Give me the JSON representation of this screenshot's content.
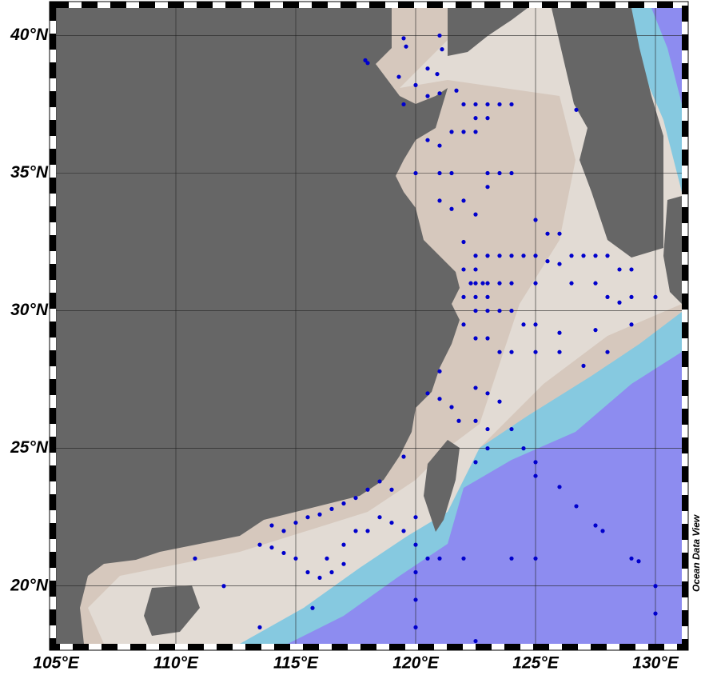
{
  "chart_data": {
    "type": "scatter",
    "annotation": "Ocean Data View",
    "color": "#0000cc",
    "grid": true,
    "xlim": [
      105,
      131.1
    ],
    "ylim": [
      17.9,
      41
    ],
    "xticks": [
      {
        "value": 105,
        "label": "105°E"
      },
      {
        "value": 110,
        "label": "110°E"
      },
      {
        "value": 115,
        "label": "115°E"
      },
      {
        "value": 120,
        "label": "120°E"
      },
      {
        "value": 125,
        "label": "125°E"
      },
      {
        "value": 130,
        "label": "130°E"
      }
    ],
    "yticks": [
      {
        "value": 20,
        "label": "20°N"
      },
      {
        "value": 25,
        "label": "25°N"
      },
      {
        "value": 30,
        "label": "30°N"
      },
      {
        "value": 35,
        "label": "35°N"
      },
      {
        "value": 40,
        "label": "40°N"
      }
    ],
    "x": [
      117.9,
      118,
      119.5,
      119.6,
      120,
      120.5,
      120.9,
      121,
      121.1,
      119.3,
      119.5,
      120.5,
      121,
      121.7,
      122,
      122.5,
      123,
      123.5,
      124,
      122.5,
      123,
      121.5,
      122,
      122.5,
      120.5,
      121,
      120,
      121,
      121.5,
      123,
      123.5,
      124,
      123,
      126.7,
      121,
      121.5,
      122,
      122.5,
      125,
      125.5,
      126,
      122,
      122.5,
      123,
      123.5,
      124,
      124.5,
      125,
      125.5,
      126,
      126.5,
      127,
      127.5,
      128,
      128.5,
      129,
      122,
      122.5,
      122.3,
      122.5,
      122.8,
      123,
      123.5,
      124,
      125,
      126.5,
      127.5,
      128,
      128.5,
      129,
      130,
      122,
      122.5,
      123,
      122.5,
      123,
      123.5,
      124,
      124.5,
      125,
      126,
      127.5,
      129,
      122,
      122.5,
      123,
      123.5,
      124,
      125,
      126,
      127,
      128,
      121,
      122.5,
      123,
      123.5,
      120.5,
      121,
      121.5,
      121.8,
      122.5,
      123,
      124,
      124.5,
      125,
      126,
      125,
      122.5,
      123,
      119.5,
      119,
      118.5,
      118,
      117.5,
      117,
      116.5,
      116,
      115.5,
      115,
      114.5,
      114,
      113.5,
      114,
      114.5,
      115,
      115.5,
      116,
      116.3,
      117,
      117.5,
      118,
      118.5,
      119,
      119.5,
      116.5,
      117,
      110.8,
      112,
      113.5,
      115.7,
      120,
      120,
      120,
      120,
      120,
      120.5,
      121,
      122,
      124,
      125,
      127.5,
      127.8,
      126.7,
      129,
      129.3,
      130,
      130,
      122.5
    ],
    "y": [
      39.1,
      39,
      39.9,
      39.6,
      38.2,
      38.8,
      38.6,
      40,
      39.5,
      38.5,
      37.5,
      37.8,
      37.9,
      38,
      37.5,
      37.5,
      37.5,
      37.5,
      37.5,
      37,
      37,
      36.5,
      36.5,
      36.5,
      36.2,
      36,
      35,
      35,
      35,
      35,
      35,
      35,
      34.5,
      37.3,
      34,
      33.7,
      34,
      33.5,
      33.3,
      32.8,
      32.8,
      32.5,
      32,
      32,
      32,
      32,
      32,
      32,
      31.8,
      31.7,
      32,
      32,
      32,
      32,
      31.5,
      31.5,
      31.5,
      31.5,
      31,
      31,
      31,
      31,
      31,
      31,
      31,
      31,
      31,
      30.5,
      30.3,
      30.5,
      30.5,
      30.5,
      30.5,
      30.5,
      30,
      30,
      30,
      30,
      29.5,
      29.5,
      29.2,
      29.3,
      29.5,
      29.5,
      29,
      29,
      28.5,
      28.5,
      28.5,
      28.5,
      28,
      28.5,
      27.8,
      27.2,
      27,
      26.7,
      27,
      26.8,
      26.5,
      26,
      26,
      25.7,
      25.7,
      25,
      24.5,
      23.6,
      24,
      24.5,
      25,
      24.7,
      23.5,
      23.8,
      23.5,
      23.2,
      23,
      22.8,
      22.6,
      22.5,
      22.3,
      22,
      22.2,
      21.5,
      21.4,
      21.2,
      21,
      20.5,
      20.3,
      21,
      21.5,
      22,
      22,
      22.5,
      22.3,
      22,
      20.5,
      20.8,
      21,
      20,
      18.5,
      19.2,
      22.5,
      21.5,
      20.5,
      19.5,
      18.5,
      21,
      21,
      21,
      21,
      21,
      22.2,
      22,
      22.9,
      21,
      20.9,
      20,
      19,
      18
    ]
  }
}
